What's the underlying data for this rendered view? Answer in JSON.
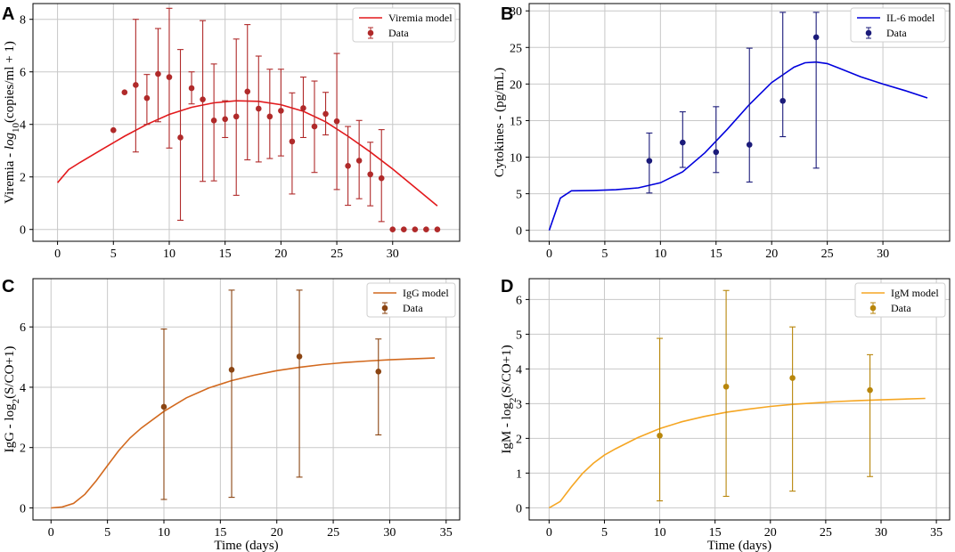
{
  "chart_data": [
    {
      "panel": "A",
      "type": "line",
      "ylabel_prefix": "Viremia - ",
      "ylabel_log": "log",
      "ylabel_sub": "10",
      "ylabel_suffix": "(copies/ml + 1)",
      "xlabel": "",
      "xlim": [
        -2.2,
        36.0
      ],
      "ylim": [
        -0.45,
        8.6
      ],
      "xticks": [
        0,
        5,
        10,
        15,
        20,
        25,
        30
      ],
      "yticks": [
        0,
        2,
        4,
        6,
        8
      ],
      "legend": {
        "position": "top-right",
        "model_label": "Viremia model",
        "data_label": "Data"
      },
      "model": {
        "color": "#e3191c",
        "x": [
          0,
          1,
          2,
          4,
          6,
          8,
          10,
          12,
          14,
          16,
          18,
          20,
          22,
          24,
          26,
          28,
          30,
          32,
          34
        ],
        "y": [
          1.78,
          2.28,
          2.55,
          3.05,
          3.55,
          4.0,
          4.38,
          4.65,
          4.82,
          4.9,
          4.88,
          4.75,
          4.5,
          4.1,
          3.55,
          2.95,
          2.3,
          1.6,
          0.9
        ]
      },
      "data": {
        "color": "#b02a2a",
        "x": [
          5,
          6,
          7,
          8,
          9,
          10,
          11,
          12,
          13,
          14,
          15,
          16,
          17,
          18,
          19,
          20,
          21,
          22,
          23,
          24,
          25,
          26,
          27,
          28,
          29,
          30,
          31,
          32,
          33,
          34
        ],
        "y": [
          3.78,
          5.22,
          5.5,
          5.0,
          5.92,
          5.8,
          3.5,
          5.38,
          4.95,
          4.15,
          4.2,
          4.3,
          5.25,
          4.6,
          4.3,
          4.52,
          3.35,
          4.62,
          3.92,
          4.4,
          4.12,
          2.42,
          2.62,
          2.1,
          1.95,
          0,
          0,
          0,
          0,
          0
        ],
        "err_low": [
          null,
          null,
          2.55,
          1.0,
          1.82,
          2.7,
          3.15,
          0.6,
          3.12,
          2.3,
          0.7,
          3.0,
          2.6,
          2.03,
          1.6,
          1.72,
          2.0,
          1.12,
          1.75,
          0.8,
          2.6,
          1.5,
          1.45,
          1.2,
          1.65,
          0,
          0,
          0,
          0,
          0
        ],
        "err_high": [
          null,
          null,
          2.5,
          0.9,
          1.73,
          2.62,
          3.35,
          0.62,
          3.0,
          2.15,
          0.7,
          2.95,
          2.55,
          2.0,
          1.8,
          1.58,
          1.85,
          1.18,
          1.73,
          0.82,
          2.58,
          1.5,
          1.53,
          1.22,
          1.85,
          0,
          0,
          0,
          0,
          0
        ]
      }
    },
    {
      "panel": "B",
      "type": "line",
      "ylabel_plain": "Cytokines - (pg/mL)",
      "xlabel": "",
      "xlim": [
        -1.8,
        36.0
      ],
      "ylim": [
        -1.5,
        31.0
      ],
      "xticks": [
        0,
        5,
        10,
        15,
        20,
        25,
        30
      ],
      "yticks": [
        0,
        5,
        10,
        15,
        20,
        25,
        30
      ],
      "legend": {
        "position": "top-right",
        "model_label": "IL-6 model",
        "data_label": "Data"
      },
      "model": {
        "color": "#0000dd",
        "x": [
          0,
          1,
          2,
          4,
          6,
          8,
          10,
          12,
          14,
          16,
          18,
          20,
          22,
          23,
          24,
          25,
          26,
          28,
          30,
          32,
          34
        ],
        "y": [
          0,
          4.4,
          5.4,
          5.45,
          5.55,
          5.8,
          6.5,
          8.0,
          10.6,
          13.8,
          17.2,
          20.2,
          22.3,
          22.9,
          23.0,
          22.8,
          22.2,
          21.0,
          20.0,
          19.1,
          18.1
        ]
      },
      "data": {
        "color": "#1b1b7a",
        "x": [
          9,
          12,
          15,
          18,
          21,
          24
        ],
        "y": [
          9.5,
          12.0,
          10.7,
          11.7,
          17.7,
          26.4
        ],
        "err_low": [
          4.4,
          3.4,
          2.8,
          5.1,
          4.9,
          17.9
        ],
        "err_high": [
          3.8,
          4.2,
          6.2,
          13.2,
          12.1,
          3.4
        ]
      }
    },
    {
      "panel": "C",
      "type": "line",
      "ylabel_prefix": "IgG - log",
      "ylabel_sub": "2",
      "ylabel_suffix": "(S/CO+1)",
      "xlabel": "Time (days)",
      "xlim": [
        -1.6,
        36.2
      ],
      "ylim": [
        -0.4,
        7.6
      ],
      "xticks": [
        0,
        5,
        10,
        15,
        20,
        25,
        30,
        35
      ],
      "yticks": [
        0,
        2,
        4,
        6
      ],
      "legend": {
        "position": "top-right",
        "model_label": "IgG model",
        "data_label": "Data"
      },
      "model": {
        "color": "#d2691e",
        "x": [
          0,
          1,
          2,
          3,
          4,
          5,
          6,
          7,
          8,
          10,
          12,
          14,
          16,
          18,
          20,
          22,
          24,
          26,
          28,
          30,
          32,
          34
        ],
        "y": [
          0,
          0.03,
          0.15,
          0.45,
          0.9,
          1.4,
          1.9,
          2.32,
          2.65,
          3.2,
          3.65,
          3.98,
          4.22,
          4.4,
          4.55,
          4.66,
          4.75,
          4.82,
          4.87,
          4.91,
          4.94,
          4.97
        ]
      },
      "data": {
        "color": "#8b4513",
        "x": [
          10,
          16,
          22,
          29
        ],
        "y": [
          3.35,
          4.58,
          5.02,
          4.52
        ],
        "err_low": [
          3.07,
          4.23,
          4.0,
          2.1
        ],
        "err_high": [
          2.58,
          2.64,
          2.2,
          1.08
        ]
      }
    },
    {
      "panel": "D",
      "type": "line",
      "ylabel_prefix": "IgM - log",
      "ylabel_sub": "2",
      "ylabel_suffix": "(S/CO+1)",
      "xlabel": "Time (days)",
      "xlim": [
        -1.8,
        36.2
      ],
      "ylim": [
        -0.35,
        6.6
      ],
      "xticks": [
        0,
        5,
        10,
        15,
        20,
        25,
        30,
        35
      ],
      "yticks": [
        0,
        1,
        2,
        3,
        4,
        5,
        6
      ],
      "legend": {
        "position": "top-right",
        "model_label": "IgM model",
        "data_label": "Data"
      },
      "model": {
        "color": "#f5a623",
        "x": [
          0,
          1,
          2,
          3,
          4,
          5,
          6,
          8,
          10,
          12,
          14,
          16,
          18,
          20,
          22,
          24,
          26,
          28,
          30,
          32,
          34
        ],
        "y": [
          0,
          0.18,
          0.6,
          0.98,
          1.28,
          1.52,
          1.7,
          2.02,
          2.28,
          2.48,
          2.63,
          2.75,
          2.84,
          2.92,
          2.98,
          3.02,
          3.06,
          3.09,
          3.11,
          3.13,
          3.15
        ]
      },
      "data": {
        "color": "#b8860b",
        "x": [
          10,
          16,
          22,
          29
        ],
        "y": [
          2.08,
          3.49,
          3.74,
          3.39
        ],
        "err_low": [
          1.88,
          3.16,
          3.26,
          2.49
        ],
        "err_high": [
          2.8,
          2.77,
          1.47,
          1.02
        ]
      }
    }
  ]
}
